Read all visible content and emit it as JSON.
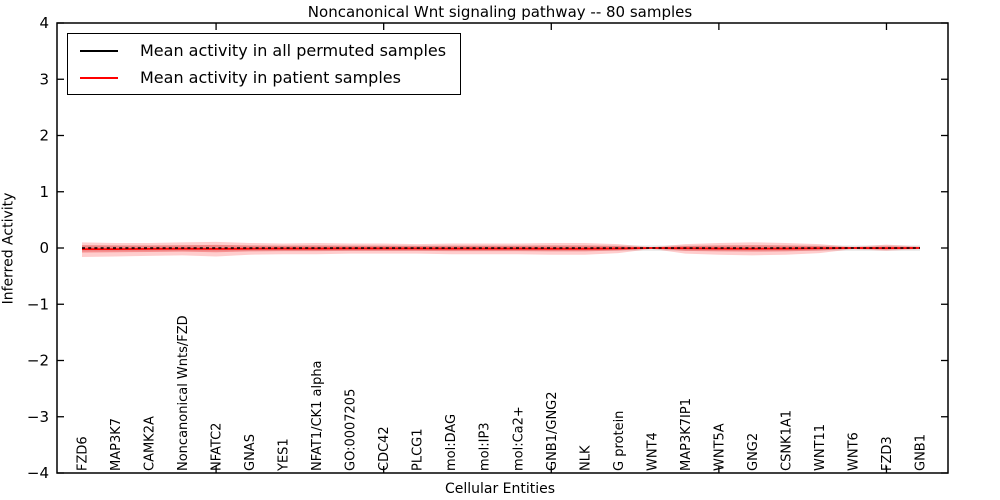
{
  "figure": {
    "title": "Noncanonical Wnt signaling pathway -- 80 samples",
    "xlabel": "Cellular Entities",
    "ylabel": "Inferred Activity",
    "background_color": "#ffffff",
    "frame_color": "#000000"
  },
  "legend": {
    "position": "upper left",
    "entries": [
      {
        "label": "Mean activity in all permuted samples",
        "color": "#000000",
        "style": "solid"
      },
      {
        "label": "Mean activity in patient samples",
        "color": "#ff0000",
        "style": "solid"
      }
    ]
  },
  "chart_data": {
    "type": "line",
    "title": "Noncanonical Wnt signaling pathway -- 80 samples",
    "xlabel": "Cellular Entities",
    "ylabel": "Inferred Activity",
    "ylim": [
      -4,
      4
    ],
    "yticks": [
      4,
      3,
      2,
      1,
      0,
      -1,
      -2,
      -3,
      -4
    ],
    "xtick_data_positions": [
      5,
      10,
      15,
      20,
      25
    ],
    "grid": false,
    "legend_position": "upper left",
    "categories": [
      "FZD6",
      "MAP3K7",
      "CAMK2A",
      "Noncanonical Wnts/FZD",
      "NFATC2",
      "GNAS",
      "YES1",
      "NFAT1/CK1 alpha",
      "GO:0007205",
      "CDC42",
      "PLCG1",
      "mol:DAG",
      "mol:IP3",
      "mol:Ca2+",
      "GNB1/GNG2",
      "NLK",
      "G protein",
      "WNT4",
      "MAP3K7IP1",
      "WNT5A",
      "GNG2",
      "CSNK1A1",
      "WNT11",
      "WNT6",
      "FZD3",
      "GNB1"
    ],
    "series": [
      {
        "name": "Mean activity in all permuted samples",
        "color": "#000000",
        "style": "dashed",
        "values": [
          0,
          0,
          0,
          0,
          0,
          0,
          0,
          0,
          0,
          0,
          0,
          0,
          0,
          0,
          0,
          0,
          0,
          0,
          0,
          0,
          0,
          0,
          0,
          0,
          0,
          0
        ]
      },
      {
        "name": "Mean activity in patient samples",
        "color": "#ff0000",
        "style": "solid",
        "values": [
          -0.02,
          -0.02,
          -0.015,
          -0.012,
          -0.015,
          -0.012,
          -0.01,
          -0.01,
          -0.008,
          -0.008,
          -0.008,
          -0.01,
          -0.01,
          -0.01,
          -0.012,
          -0.012,
          -0.008,
          0,
          -0.005,
          -0.01,
          -0.012,
          -0.01,
          -0.005,
          0,
          -0.003,
          0
        ]
      }
    ],
    "bands": [
      {
        "name": "permuted-samples-spread",
        "color": "rgba(130,130,130,0.17)",
        "upper": [
          0.05,
          0.05,
          0.05,
          0.05,
          0.05,
          0.05,
          0.05,
          0.05,
          0.05,
          0.05,
          0.05,
          0.05,
          0.05,
          0.05,
          0.05,
          0.05,
          0.05,
          0.05,
          0.05,
          0.05,
          0.05,
          0.05,
          0.05,
          0.05,
          0.05,
          0.05
        ],
        "lower": [
          -0.05,
          -0.05,
          -0.05,
          -0.05,
          -0.05,
          -0.05,
          -0.05,
          -0.05,
          -0.05,
          -0.05,
          -0.05,
          -0.05,
          -0.05,
          -0.05,
          -0.05,
          -0.05,
          -0.05,
          -0.05,
          -0.05,
          -0.05,
          -0.05,
          -0.05,
          -0.05,
          -0.05,
          -0.05,
          -0.05
        ]
      },
      {
        "name": "patient-samples-spread",
        "color": "rgba(255,70,70,0.27)",
        "upper": [
          0.1,
          0.09,
          0.09,
          0.1,
          0.11,
          0.09,
          0.08,
          0.09,
          0.08,
          0.08,
          0.07,
          0.08,
          0.08,
          0.08,
          0.09,
          0.09,
          0.07,
          0.015,
          0.07,
          0.09,
          0.1,
          0.09,
          0.07,
          0.02,
          0.06,
          0.025
        ],
        "lower": [
          -0.16,
          -0.15,
          -0.14,
          -0.13,
          -0.15,
          -0.12,
          -0.11,
          -0.11,
          -0.1,
          -0.1,
          -0.1,
          -0.11,
          -0.11,
          -0.11,
          -0.12,
          -0.12,
          -0.09,
          -0.015,
          -0.1,
          -0.12,
          -0.13,
          -0.12,
          -0.09,
          -0.02,
          -0.05,
          -0.02
        ]
      }
    ]
  }
}
